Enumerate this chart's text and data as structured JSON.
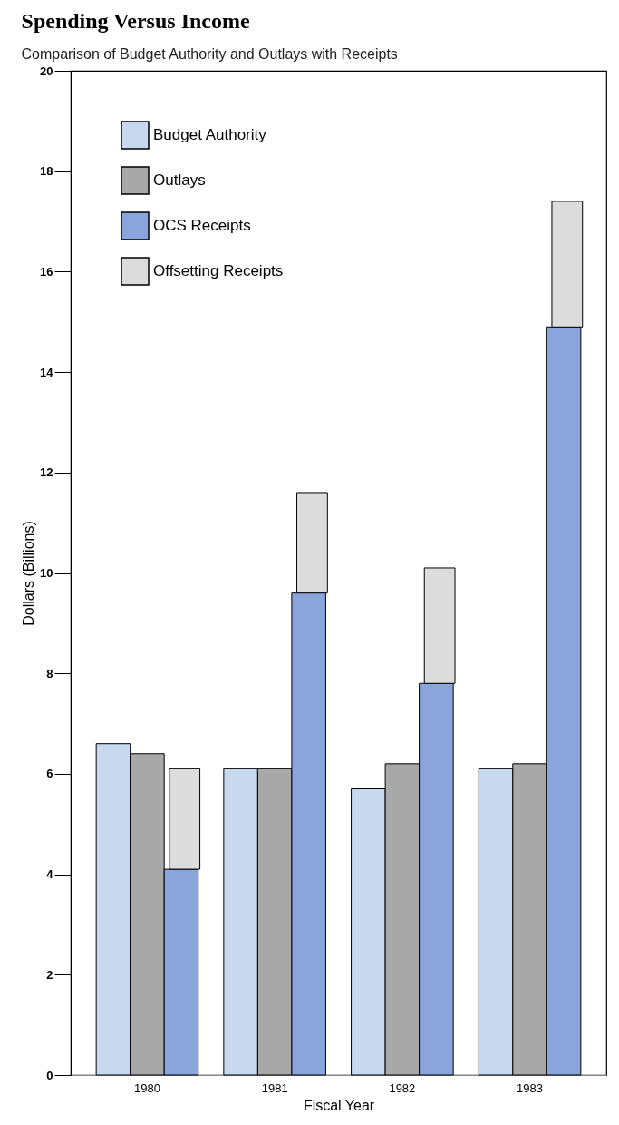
{
  "chart_data": {
    "type": "bar",
    "title": "Spending Versus Income",
    "subtitle": "Comparison of Budget Authority and Outlays with Receipts",
    "xlabel": "Fiscal Year",
    "ylabel": "Dollars (Billions)",
    "categories": [
      "1980",
      "1981",
      "1982",
      "1983"
    ],
    "series": [
      {
        "name": "Budget Authority",
        "color": "#c8d8ee",
        "values": [
          6.6,
          6.1,
          5.7,
          6.1
        ]
      },
      {
        "name": "Outlays",
        "color": "#a8a8a8",
        "values": [
          6.4,
          6.1,
          6.2,
          6.2
        ]
      },
      {
        "name": "OCS Receipts",
        "color": "#8aa4dc",
        "values": [
          4.1,
          9.6,
          7.8,
          14.9
        ]
      },
      {
        "name": "Offsetting Receipts",
        "color": "#dcdcdc",
        "base": [
          4.1,
          9.6,
          7.8,
          14.9
        ],
        "values": [
          2.0,
          2.0,
          2.3,
          2.5
        ]
      }
    ],
    "ylim": [
      0,
      20
    ],
    "yticks": [
      0,
      2,
      4,
      6,
      8,
      10,
      12,
      14,
      16,
      18,
      20
    ],
    "grid": false,
    "legend": "top left"
  }
}
